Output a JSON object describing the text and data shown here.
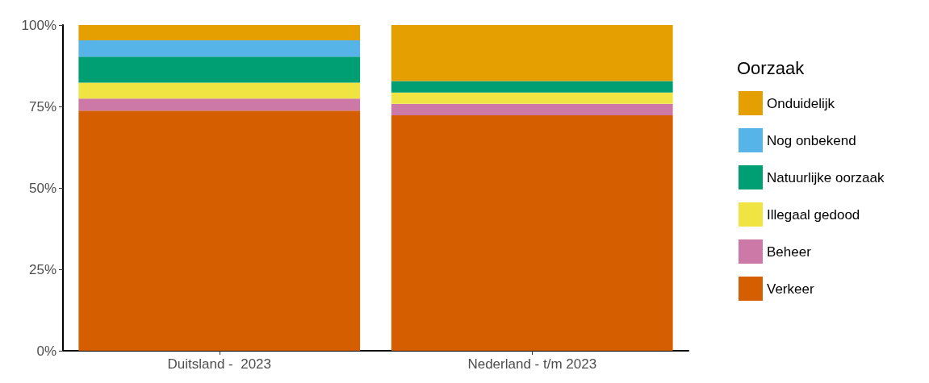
{
  "chart_data": {
    "type": "bar",
    "stacked": true,
    "legend_title": "Oorzaak",
    "legend": "right",
    "grid": false,
    "categories": [
      "Duitsland -  2023",
      "Nederland - t/m 2023"
    ],
    "ylim": [
      0,
      100
    ],
    "yticks": [
      {
        "value": 0,
        "label": "0%"
      },
      {
        "value": 25,
        "label": "25%"
      },
      {
        "value": 50,
        "label": "50%"
      },
      {
        "value": 75,
        "label": "75%"
      },
      {
        "value": 100,
        "label": "100%"
      }
    ],
    "series": [
      {
        "name": "Verkeer",
        "color": "#d55e00",
        "values": [
          73.7,
          72.3
        ]
      },
      {
        "name": "Beheer",
        "color": "#cc79a7",
        "values": [
          3.7,
          3.5
        ]
      },
      {
        "name": "Illegaal gedood",
        "color": "#f0e442",
        "values": [
          4.9,
          3.5
        ]
      },
      {
        "name": "Natuurlijke oorzaak",
        "color": "#009e73",
        "values": [
          8.0,
          3.5
        ]
      },
      {
        "name": "Nog onbekend",
        "color": "#56b4e9",
        "values": [
          5.0,
          0
        ]
      },
      {
        "name": "Onduidelijk",
        "color": "#e69f00",
        "values": [
          4.7,
          17.2
        ]
      }
    ]
  }
}
